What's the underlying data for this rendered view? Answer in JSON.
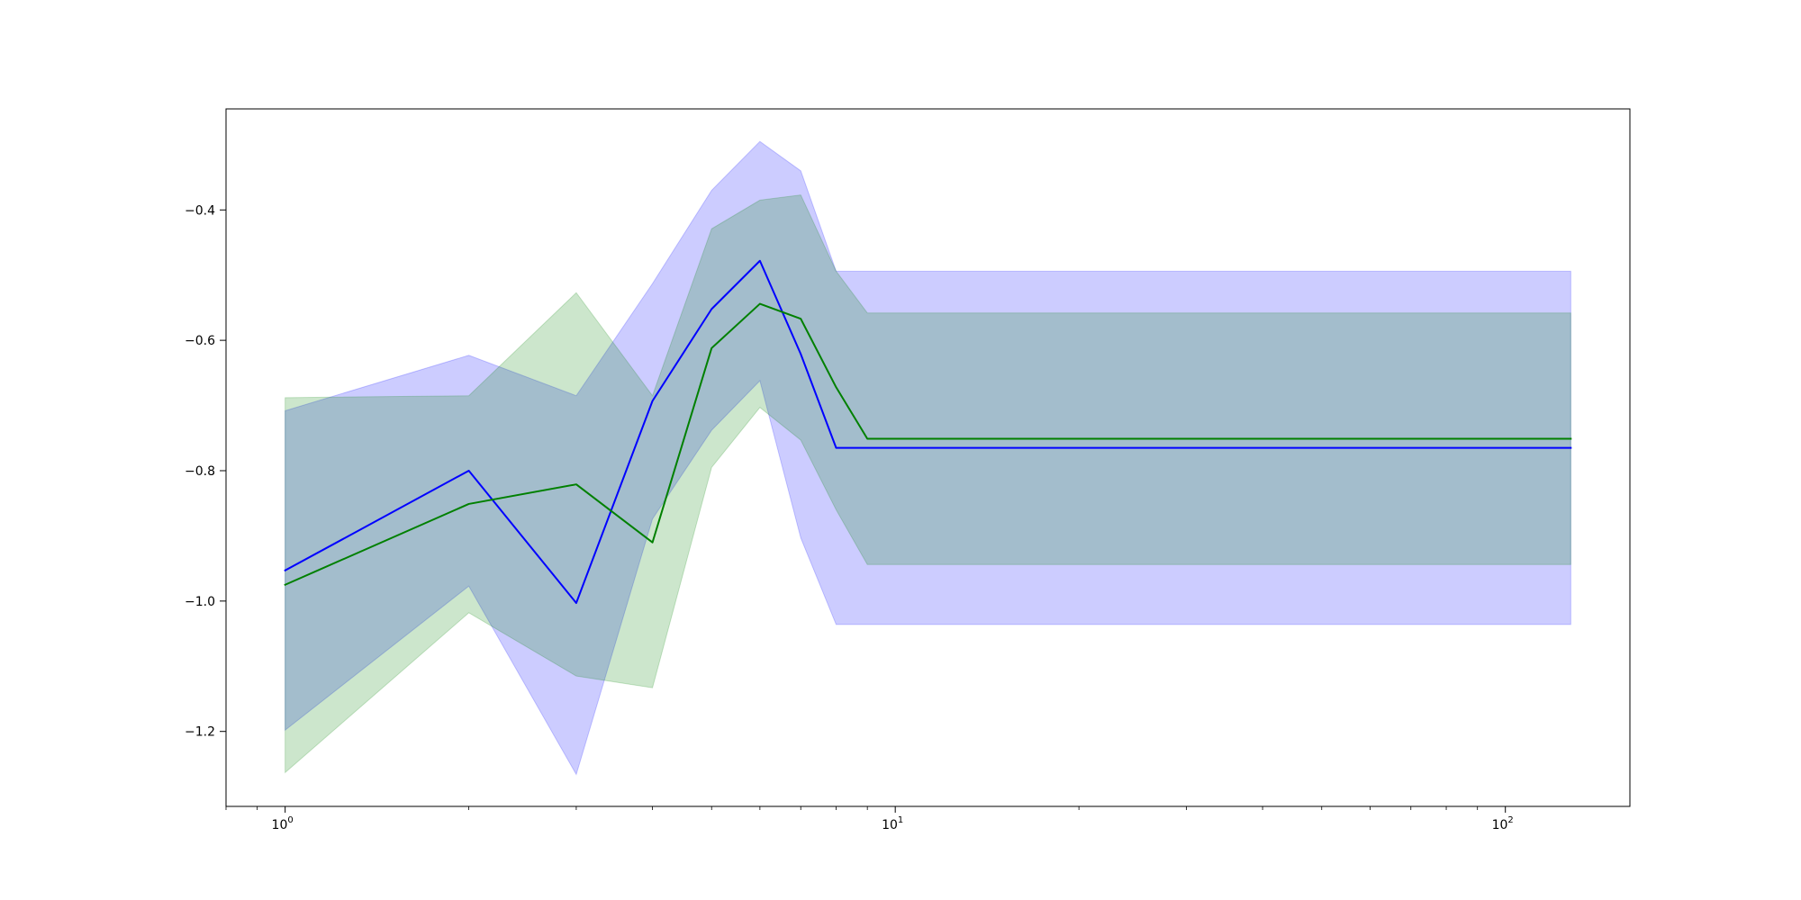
{
  "chart_data": {
    "type": "line",
    "title": "",
    "xlabel": "",
    "ylabel": "",
    "xscale": "log",
    "xlim": [
      0.8,
      160
    ],
    "ylim": [
      -1.315,
      -0.245
    ],
    "grid": false,
    "x": [
      1,
      2,
      3,
      4,
      5,
      6,
      7,
      8,
      9,
      128
    ],
    "x_ticks": [
      {
        "value": 1,
        "base": "10",
        "exp": "0"
      },
      {
        "value": 10,
        "base": "10",
        "exp": "1"
      },
      {
        "value": 100,
        "base": "10",
        "exp": "2"
      }
    ],
    "y_ticks": [
      -1.2,
      -1.0,
      -0.8,
      -0.6,
      -0.4
    ],
    "y_tick_labels": [
      "−1.2",
      "−1.0",
      "−0.8",
      "−0.6",
      "−0.4"
    ],
    "series": [
      {
        "color": "#0000ff",
        "band_color": "#0000ff",
        "band_opacity": 0.2,
        "values": [
          -0.953,
          -0.8,
          -1.003,
          -0.693,
          -0.552,
          -0.478,
          -0.621,
          -0.765,
          -0.765,
          -0.765
        ],
        "upper": [
          -0.708,
          -0.623,
          -0.685,
          -0.513,
          -0.37,
          -0.295,
          -0.34,
          -0.494,
          -0.494,
          -0.494
        ],
        "lower": [
          -1.198,
          -0.977,
          -1.266,
          -0.874,
          -0.738,
          -0.662,
          -0.903,
          -1.036,
          -1.036,
          -1.036
        ]
      },
      {
        "color": "#008000",
        "band_color": "#008000",
        "band_opacity": 0.2,
        "values": [
          -0.975,
          -0.851,
          -0.821,
          -0.91,
          -0.612,
          -0.544,
          -0.567,
          -0.672,
          -0.751,
          -0.751
        ],
        "upper": [
          -0.688,
          -0.685,
          -0.527,
          -0.685,
          -0.429,
          -0.385,
          -0.377,
          -0.494,
          -0.558,
          -0.558
        ],
        "lower": [
          -1.263,
          -1.018,
          -1.115,
          -1.133,
          -0.795,
          -0.703,
          -0.753,
          -0.86,
          -0.944,
          -0.944
        ]
      }
    ]
  }
}
